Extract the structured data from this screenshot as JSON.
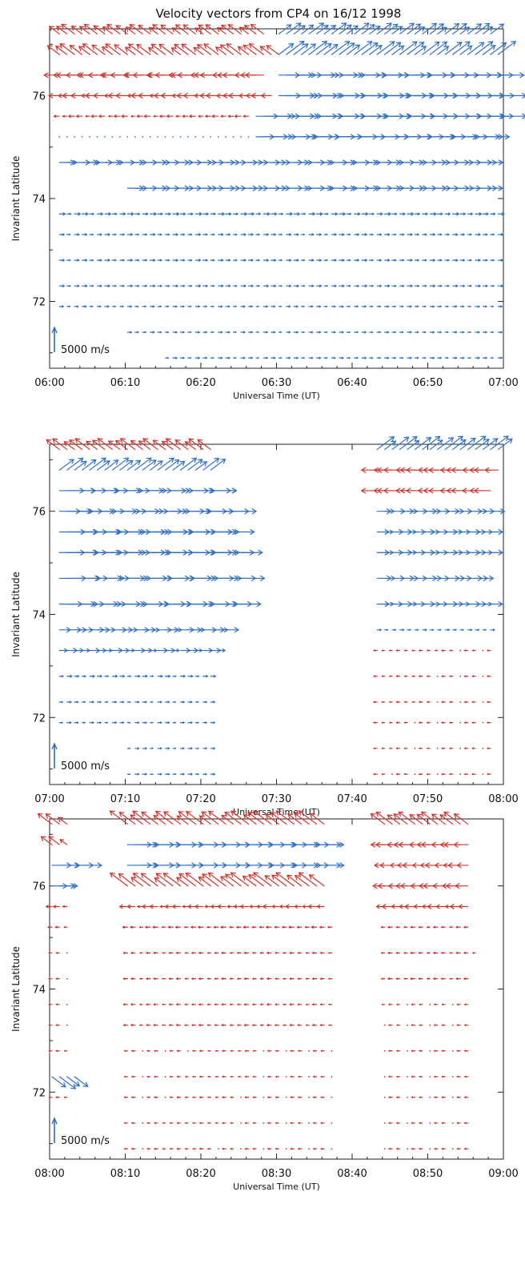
{
  "figure": {
    "title": "Velocity vectors from CP4 on 16/12 1998"
  },
  "colors": {
    "eastward": "#2f6fc4",
    "westward": "#d0332b",
    "axis": "#222222"
  },
  "chart_data": [
    {
      "type": "scatter",
      "subtype": "velocity-vector-plot",
      "xlabel": "Universal Time (UT)",
      "ylabel": "Invariant Latitude",
      "x_ticks": [
        "06:00",
        "06:10",
        "06:20",
        "06:30",
        "06:40",
        "06:50",
        "07:00"
      ],
      "y_ticks": [
        72,
        74,
        76
      ],
      "xlim": [
        "06:00",
        "07:00"
      ],
      "ylim": [
        70.7,
        77.3
      ],
      "scale_label": "5000 m/s",
      "scale_value_ms": 5000,
      "latitudes": [
        77.2,
        76.8,
        76.4,
        76.0,
        75.6,
        75.2,
        74.7,
        74.2,
        73.7,
        73.3,
        72.8,
        72.3,
        71.9,
        71.4,
        70.9
      ],
      "segments": [
        {
          "lat": 77.2,
          "start": "06:01",
          "end": "06:28",
          "dir": "nw",
          "mag": 0.4
        },
        {
          "lat": 77.2,
          "start": "06:30",
          "end": "06:58",
          "dir": "ne",
          "mag": 0.45
        },
        {
          "lat": 76.8,
          "start": "06:01",
          "end": "06:30",
          "dir": "nw",
          "mag": 0.45
        },
        {
          "lat": 76.8,
          "start": "06:30",
          "end": "06:59",
          "dir": "ne",
          "mag": 0.55
        },
        {
          "lat": 76.4,
          "start": "06:01",
          "end": "06:28",
          "dir": "w",
          "mag": 0.45
        },
        {
          "lat": 76.4,
          "start": "06:30",
          "end": "06:59",
          "dir": "e",
          "mag": 0.65
        },
        {
          "lat": 76.0,
          "start": "06:01",
          "end": "06:29",
          "dir": "w",
          "mag": 0.3
        },
        {
          "lat": 76.0,
          "start": "06:30",
          "end": "06:59",
          "dir": "e",
          "mag": 0.7
        },
        {
          "lat": 75.6,
          "start": "06:01",
          "end": "06:26",
          "dir": "w",
          "mag": 0.15
        },
        {
          "lat": 75.6,
          "start": "06:27",
          "end": "06:59",
          "dir": "e",
          "mag": 0.7
        },
        {
          "lat": 75.2,
          "start": "06:01",
          "end": "06:26",
          "dir": "n",
          "mag": 0.05
        },
        {
          "lat": 75.2,
          "start": "06:27",
          "end": "06:58",
          "dir": "e",
          "mag": 0.6
        },
        {
          "lat": 74.7,
          "start": "06:01",
          "end": "06:58",
          "dir": "e",
          "mag": 0.4
        },
        {
          "lat": 74.2,
          "start": "06:10",
          "end": "06:58",
          "dir": "e",
          "mag": 0.4
        },
        {
          "lat": 73.7,
          "start": "06:01",
          "end": "06:59",
          "dir": "e",
          "mag": 0.15
        },
        {
          "lat": 73.3,
          "start": "06:01",
          "end": "06:59",
          "dir": "e",
          "mag": 0.12
        },
        {
          "lat": 72.8,
          "start": "06:01",
          "end": "06:59",
          "dir": "e",
          "mag": 0.12
        },
        {
          "lat": 72.3,
          "start": "06:01",
          "end": "06:59",
          "dir": "e",
          "mag": 0.12
        },
        {
          "lat": 71.9,
          "start": "06:01",
          "end": "06:59",
          "dir": "e",
          "mag": 0.1
        },
        {
          "lat": 71.4,
          "start": "06:10",
          "end": "06:59",
          "dir": "e",
          "mag": 0.1
        },
        {
          "lat": 70.9,
          "start": "06:15",
          "end": "06:59",
          "dir": "e",
          "mag": 0.1
        }
      ]
    },
    {
      "type": "scatter",
      "subtype": "velocity-vector-plot",
      "xlabel": "Universal Time (UT)",
      "ylabel": "Invariant Latitude",
      "x_ticks": [
        "07:00",
        "07:10",
        "07:20",
        "07:30",
        "07:40",
        "07:50",
        "08:00"
      ],
      "y_ticks": [
        72,
        74,
        76
      ],
      "xlim": [
        "07:00",
        "08:00"
      ],
      "ylim": [
        70.7,
        77.3
      ],
      "scale_label": "5000 m/s",
      "scale_value_ms": 5000,
      "latitudes": [
        77.2,
        76.8,
        76.4,
        76.0,
        75.6,
        75.2,
        74.7,
        74.2,
        73.7,
        73.3,
        72.8,
        72.3,
        71.9,
        71.4,
        70.9
      ],
      "segments": [
        {
          "lat": 77.2,
          "start": "07:01",
          "end": "07:21",
          "dir": "nw",
          "mag": 0.45
        },
        {
          "lat": 76.8,
          "start": "07:01",
          "end": "07:21",
          "dir": "ne",
          "mag": 0.5
        },
        {
          "lat": 76.4,
          "start": "07:01",
          "end": "07:22",
          "dir": "e",
          "mag": 0.7
        },
        {
          "lat": 76.0,
          "start": "07:01",
          "end": "07:24",
          "dir": "e",
          "mag": 0.6
        },
        {
          "lat": 75.6,
          "start": "07:01",
          "end": "07:23",
          "dir": "e",
          "mag": 0.75
        },
        {
          "lat": 75.2,
          "start": "07:01",
          "end": "07:24",
          "dir": "e",
          "mag": 0.75
        },
        {
          "lat": 74.7,
          "start": "07:01",
          "end": "07:24",
          "dir": "e",
          "mag": 0.8
        },
        {
          "lat": 74.2,
          "start": "07:01",
          "end": "07:24",
          "dir": "e",
          "mag": 0.7
        },
        {
          "lat": 73.7,
          "start": "07:01",
          "end": "07:23",
          "dir": "e",
          "mag": 0.35
        },
        {
          "lat": 73.3,
          "start": "07:01",
          "end": "07:22",
          "dir": "e",
          "mag": 0.25
        },
        {
          "lat": 72.8,
          "start": "07:01",
          "end": "07:21",
          "dir": "e",
          "mag": 0.12
        },
        {
          "lat": 72.3,
          "start": "07:01",
          "end": "07:21",
          "dir": "e",
          "mag": 0.1
        },
        {
          "lat": 71.9,
          "start": "07:01",
          "end": "07:21",
          "dir": "e",
          "mag": 0.1
        },
        {
          "lat": 71.4,
          "start": "07:10",
          "end": "07:21",
          "dir": "e",
          "mag": 0.1
        },
        {
          "lat": 70.9,
          "start": "07:10",
          "end": "07:21",
          "dir": "e",
          "mag": 0.1
        },
        {
          "lat": 77.2,
          "start": "07:43",
          "end": "07:59",
          "dir": "ne",
          "mag": 0.55
        },
        {
          "lat": 76.8,
          "start": "07:43",
          "end": "07:59",
          "dir": "w",
          "mag": 0.4
        },
        {
          "lat": 76.4,
          "start": "07:43",
          "end": "07:58",
          "dir": "w",
          "mag": 0.4
        },
        {
          "lat": 76.0,
          "start": "07:43",
          "end": "07:58",
          "dir": "e",
          "mag": 0.35
        },
        {
          "lat": 75.6,
          "start": "07:43",
          "end": "07:58",
          "dir": "e",
          "mag": 0.3
        },
        {
          "lat": 75.2,
          "start": "07:43",
          "end": "07:58",
          "dir": "e",
          "mag": 0.3
        },
        {
          "lat": 74.7,
          "start": "07:43",
          "end": "07:57",
          "dir": "e",
          "mag": 0.35
        },
        {
          "lat": 74.2,
          "start": "07:43",
          "end": "07:58",
          "dir": "e",
          "mag": 0.3
        },
        {
          "lat": 73.7,
          "start": "07:43",
          "end": "07:58",
          "dir": "e",
          "mag": 0.1
        },
        {
          "lat": 73.3,
          "start": "07:43",
          "end": "07:58",
          "dir": "w",
          "mag": 0.08
        },
        {
          "lat": 72.8,
          "start": "07:43",
          "end": "07:58",
          "dir": "w",
          "mag": 0.08
        },
        {
          "lat": 72.3,
          "start": "07:43",
          "end": "07:58",
          "dir": "w",
          "mag": 0.08
        },
        {
          "lat": 71.9,
          "start": "07:43",
          "end": "07:58",
          "dir": "w",
          "mag": 0.08
        },
        {
          "lat": 71.4,
          "start": "07:43",
          "end": "07:58",
          "dir": "w",
          "mag": 0.08
        },
        {
          "lat": 70.9,
          "start": "07:43",
          "end": "07:58",
          "dir": "w",
          "mag": 0.08
        }
      ]
    },
    {
      "type": "scatter",
      "subtype": "velocity-vector-plot",
      "xlabel": "Universal Time (UT)",
      "ylabel": "Invariant Latitude",
      "x_ticks": [
        "08:00",
        "08:10",
        "08:20",
        "08:30",
        "08:40",
        "08:50",
        "09:00"
      ],
      "y_ticks": [
        72,
        74,
        76
      ],
      "xlim": [
        "08:00",
        "09:00"
      ],
      "ylim": [
        70.7,
        77.3
      ],
      "scale_label": "5000 m/s",
      "scale_value_ms": 5000,
      "latitudes": [
        77.2,
        76.8,
        76.4,
        76.0,
        75.6,
        75.2,
        74.7,
        74.2,
        73.7,
        73.3,
        72.8,
        72.3,
        71.9,
        71.4,
        70.9
      ],
      "segments": [
        {
          "lat": 77.2,
          "start": "08:00",
          "end": "08:02",
          "dir": "nw",
          "mag": 0.45
        },
        {
          "lat": 76.8,
          "start": "08:00",
          "end": "08:02",
          "dir": "nw",
          "mag": 0.35
        },
        {
          "lat": 76.4,
          "start": "08:00",
          "end": "08:04",
          "dir": "e",
          "mag": 0.5
        },
        {
          "lat": 76.0,
          "start": "08:00",
          "end": "08:02",
          "dir": "e",
          "mag": 0.4
        },
        {
          "lat": 75.6,
          "start": "08:00",
          "end": "08:02",
          "dir": "w",
          "mag": 0.15
        },
        {
          "lat": 75.2,
          "start": "08:00",
          "end": "08:02",
          "dir": "w",
          "mag": 0.1
        },
        {
          "lat": 74.7,
          "start": "08:00",
          "end": "08:02",
          "dir": "w",
          "mag": 0.08
        },
        {
          "lat": 74.2,
          "start": "08:00",
          "end": "08:02",
          "dir": "w",
          "mag": 0.08
        },
        {
          "lat": 73.7,
          "start": "08:00",
          "end": "08:02",
          "dir": "w",
          "mag": 0.08
        },
        {
          "lat": 73.3,
          "start": "08:00",
          "end": "08:02",
          "dir": "w",
          "mag": 0.08
        },
        {
          "lat": 72.8,
          "start": "08:00",
          "end": "08:02",
          "dir": "w",
          "mag": 0.08
        },
        {
          "lat": 72.3,
          "start": "08:00",
          "end": "08:03",
          "dir": "se",
          "mag": 0.5
        },
        {
          "lat": 71.9,
          "start": "08:00",
          "end": "08:02",
          "dir": "w",
          "mag": 0.08
        },
        {
          "lat": 77.2,
          "start": "08:10",
          "end": "08:36",
          "dir": "nw",
          "mag": 0.55
        },
        {
          "lat": 76.8,
          "start": "08:10",
          "end": "08:36",
          "dir": "e",
          "mag": 0.6
        },
        {
          "lat": 76.4,
          "start": "08:10",
          "end": "08:36",
          "dir": "e",
          "mag": 0.6
        },
        {
          "lat": 76.0,
          "start": "08:10",
          "end": "08:36",
          "dir": "nw",
          "mag": 0.55
        },
        {
          "lat": 75.6,
          "start": "08:10",
          "end": "08:36",
          "dir": "w",
          "mag": 0.2
        },
        {
          "lat": 75.2,
          "start": "08:10",
          "end": "08:37",
          "dir": "w",
          "mag": 0.12
        },
        {
          "lat": 74.7,
          "start": "08:10",
          "end": "08:37",
          "dir": "w",
          "mag": 0.1
        },
        {
          "lat": 74.2,
          "start": "08:10",
          "end": "08:37",
          "dir": "w",
          "mag": 0.1
        },
        {
          "lat": 73.7,
          "start": "08:10",
          "end": "08:37",
          "dir": "w",
          "mag": 0.1
        },
        {
          "lat": 73.3,
          "start": "08:10",
          "end": "08:37",
          "dir": "w",
          "mag": 0.1
        },
        {
          "lat": 72.8,
          "start": "08:10",
          "end": "08:37",
          "dir": "w",
          "mag": 0.08
        },
        {
          "lat": 72.3,
          "start": "08:10",
          "end": "08:37",
          "dir": "w",
          "mag": 0.08
        },
        {
          "lat": 71.9,
          "start": "08:10",
          "end": "08:37",
          "dir": "w",
          "mag": 0.08
        },
        {
          "lat": 71.4,
          "start": "08:10",
          "end": "08:37",
          "dir": "w",
          "mag": 0.08
        },
        {
          "lat": 70.9,
          "start": "08:10",
          "end": "08:37",
          "dir": "w",
          "mag": 0.08
        },
        {
          "lat": 77.2,
          "start": "08:44",
          "end": "08:55",
          "dir": "nw",
          "mag": 0.5
        },
        {
          "lat": 76.8,
          "start": "08:44",
          "end": "08:55",
          "dir": "w",
          "mag": 0.4
        },
        {
          "lat": 76.4,
          "start": "08:44",
          "end": "08:55",
          "dir": "w",
          "mag": 0.3
        },
        {
          "lat": 76.0,
          "start": "08:44",
          "end": "08:55",
          "dir": "w",
          "mag": 0.35
        },
        {
          "lat": 75.6,
          "start": "08:44",
          "end": "08:55",
          "dir": "w",
          "mag": 0.25
        },
        {
          "lat": 75.2,
          "start": "08:44",
          "end": "08:55",
          "dir": "w",
          "mag": 0.1
        },
        {
          "lat": 74.7,
          "start": "08:44",
          "end": "08:56",
          "dir": "w",
          "mag": 0.1
        },
        {
          "lat": 74.2,
          "start": "08:44",
          "end": "08:55",
          "dir": "w",
          "mag": 0.1
        },
        {
          "lat": 73.7,
          "start": "08:44",
          "end": "08:55",
          "dir": "w",
          "mag": 0.08
        },
        {
          "lat": 73.3,
          "start": "08:44",
          "end": "08:55",
          "dir": "w",
          "mag": 0.08
        },
        {
          "lat": 72.8,
          "start": "08:44",
          "end": "08:55",
          "dir": "w",
          "mag": 0.08
        },
        {
          "lat": 72.3,
          "start": "08:44",
          "end": "08:55",
          "dir": "w",
          "mag": 0.08
        },
        {
          "lat": 71.9,
          "start": "08:44",
          "end": "08:55",
          "dir": "w",
          "mag": 0.08
        },
        {
          "lat": 71.4,
          "start": "08:44",
          "end": "08:55",
          "dir": "w",
          "mag": 0.08
        },
        {
          "lat": 70.9,
          "start": "08:44",
          "end": "08:55",
          "dir": "w",
          "mag": 0.08
        }
      ]
    }
  ]
}
